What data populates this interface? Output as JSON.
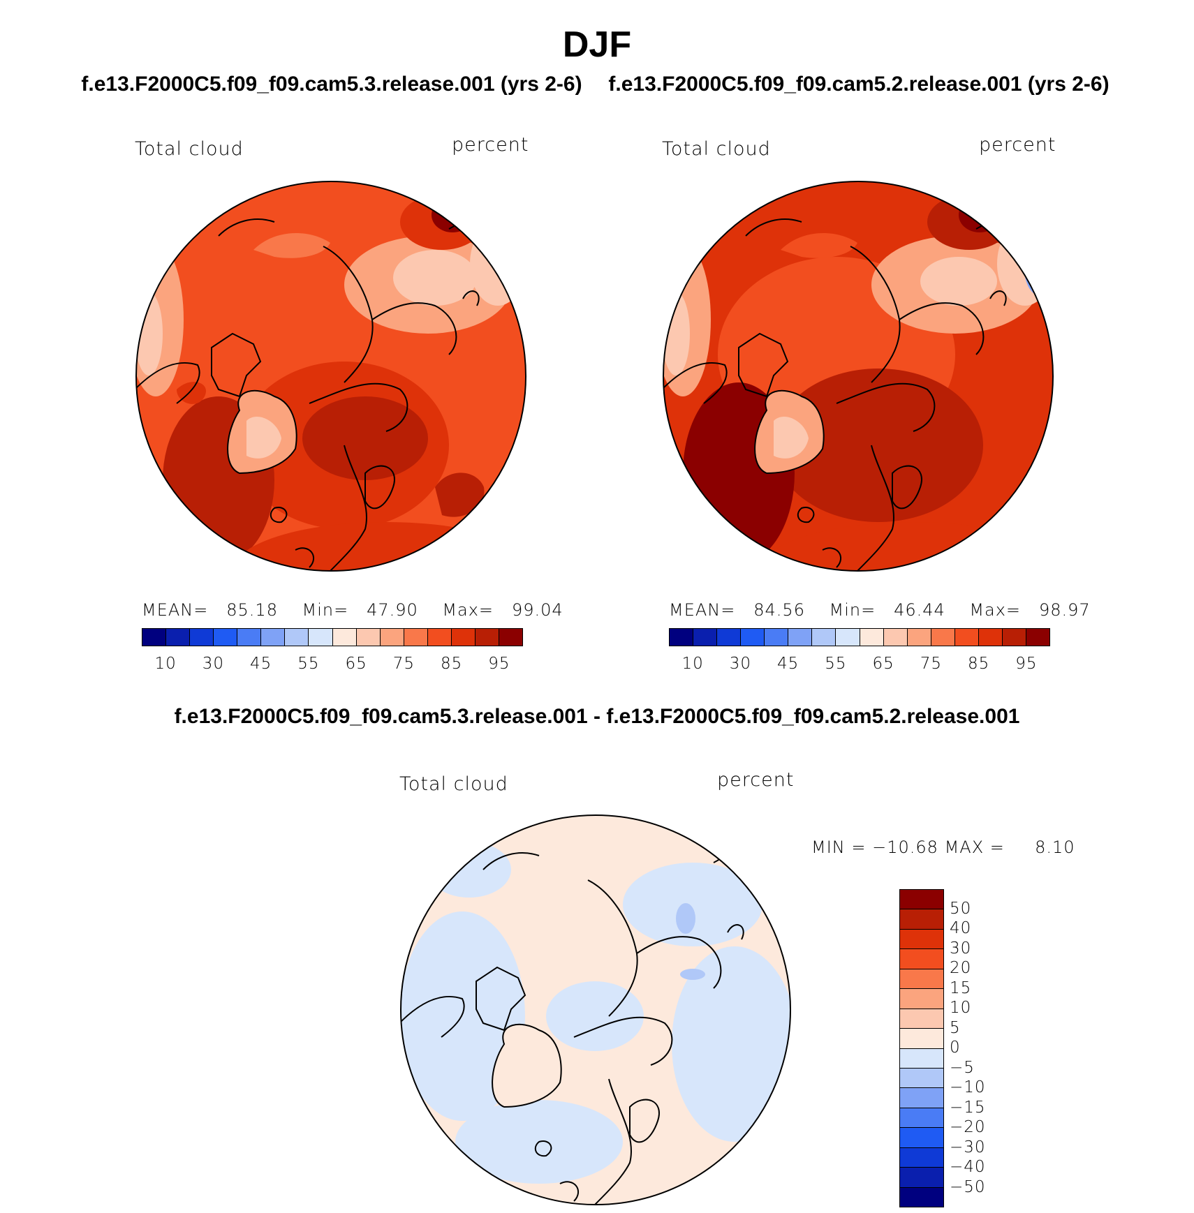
{
  "figure": {
    "title": "DJF",
    "panel_left_title": "f.e13.F2000C5.f09_f09.cam5.3.release.001 (yrs 2-6)",
    "panel_right_title": "f.e13.F2000C5.f09_f09.cam5.2.release.001 (yrs 2-6)",
    "diff_title": "f.e13.F2000C5.f09_f09.cam5.3.release.001 - f.e13.F2000C5.f09_f09.cam5.2.release.001"
  },
  "panels": [
    {
      "variable": "Total cloud",
      "units": "percent",
      "stats": {
        "mean_label": "MEAN=",
        "mean": "85.18",
        "min_label": "Min=",
        "min": "47.90",
        "max_label": "Max=",
        "max": "99.04"
      }
    },
    {
      "variable": "Total cloud",
      "units": "percent",
      "stats": {
        "mean_label": "MEAN=",
        "mean": "84.56",
        "min_label": "Min=",
        "min": "46.44",
        "max_label": "Max=",
        "max": "98.97"
      }
    },
    {
      "variable": "Total cloud",
      "units": "percent",
      "stats": {
        "min_label": "MIN =",
        "min": "−10.68",
        "max_label": "MAX =",
        "max": "8.10"
      }
    }
  ],
  "colorbar_abs": {
    "colors": [
      "#00007f",
      "#0a1fae",
      "#0f3ad6",
      "#1f5bf3",
      "#4a7cf5",
      "#7fa2f6",
      "#b0c8f8",
      "#d7e6fb",
      "#fde9dc",
      "#fcc8b0",
      "#fba47e",
      "#f9784a",
      "#f24e1f",
      "#de3209",
      "#b81f05",
      "#8b0000"
    ],
    "ticks": [
      "10",
      "30",
      "45",
      "55",
      "65",
      "75",
      "85",
      "95"
    ]
  },
  "colorbar_diff": {
    "colors_top_to_bottom": [
      "#8b0000",
      "#b81f05",
      "#de3209",
      "#f24e1f",
      "#f9784a",
      "#fba47e",
      "#fcc8b0",
      "#fde9dc",
      "#d7e6fb",
      "#b0c8f8",
      "#7fa2f6",
      "#4a7cf5",
      "#1f5bf3",
      "#0f3ad6",
      "#0a1fae",
      "#00007f"
    ],
    "ticks_top_to_bottom": [
      "50",
      "40",
      "30",
      "20",
      "15",
      "10",
      "5",
      "0",
      "−5",
      "−10",
      "−15",
      "−20",
      "−30",
      "−40",
      "−50"
    ]
  }
}
